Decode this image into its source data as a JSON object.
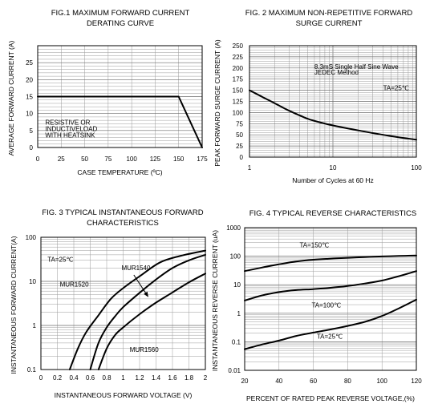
{
  "chart_data": [
    {
      "type": "line",
      "title": [
        "FIG.1 MAXIMUM FORWARD CURRENT",
        "DERATING CURVE"
      ],
      "xlabel": "CASE TEMPERATURE (ºC)",
      "ylabel": "AVERAGE FORWARD CURRENT (A)",
      "xlim": [
        0,
        175
      ],
      "ylim": [
        0,
        30
      ],
      "x_ticks": [
        "0",
        "25",
        "50",
        "75",
        "100",
        "125",
        "150",
        "175"
      ],
      "y_ticks": [
        "0",
        "5",
        "10",
        "15",
        "20",
        "25"
      ],
      "grid": true,
      "series": [
        {
          "x": [
            0,
            150,
            175
          ],
          "y": [
            15,
            15,
            0
          ]
        }
      ],
      "annotations": [
        {
          "text": "RESISTIVE OR",
          "x": 8,
          "y": 6.7
        },
        {
          "text": "INDUCTIVELOAD",
          "x": 8,
          "y": 4.8
        },
        {
          "text": "WITH HEATSINK",
          "x": 8,
          "y": 2.9
        }
      ]
    },
    {
      "type": "line",
      "title": [
        "FIG. 2 MAXIMUM NON-REPETITIVE FORWARD",
        "SURGE CURRENT"
      ],
      "xlabel": "Number of Cycles at 60 Hz",
      "ylabel": "PEAK FORWARD SURGE CURRENT (A)",
      "xscale": "log",
      "xlim": [
        1,
        100
      ],
      "ylim": [
        0,
        250
      ],
      "x_ticks": [
        "1",
        "10",
        "100"
      ],
      "y_ticks": [
        "0",
        "25",
        "50",
        "75",
        "100",
        "125",
        "150",
        "175",
        "200",
        "225",
        "250"
      ],
      "grid": true,
      "series": [
        {
          "x": [
            1,
            1.5,
            2,
            3,
            5,
            7,
            10,
            20,
            30,
            50,
            70,
            100
          ],
          "y": [
            150,
            133,
            121,
            104,
            86,
            78,
            71,
            60,
            54,
            47,
            43,
            39
          ]
        }
      ],
      "annotations": [
        {
          "text": "8.3mS Single Half Sine Wave",
          "x": 6,
          "y": 198
        },
        {
          "text": "JEDEC Method",
          "x": 6,
          "y": 185
        },
        {
          "text": "TA=25℃",
          "x": 40,
          "y": 150
        }
      ]
    },
    {
      "type": "line",
      "title": [
        "FIG. 3 TYPICAL INSTANTANEOUS FORWARD",
        "CHARACTERISTICS"
      ],
      "xlabel": "INSTANTANEOUS FORWARD VOLTAGE (V)",
      "ylabel": "INSTANTANEOUS FORWARD CURRENT(A)",
      "yscale": "log",
      "xlim": [
        0,
        2
      ],
      "ylim": [
        0.1,
        100
      ],
      "x_ticks": [
        "0",
        "0.2",
        "0.4",
        "0.6",
        "0.8",
        "1",
        "1.2",
        "1.4",
        "1.6",
        "1.8",
        "2"
      ],
      "y_ticks": [
        "0.1",
        "1",
        "10",
        "100"
      ],
      "grid": true,
      "series": [
        {
          "name": "MUR1520",
          "x": [
            0.35,
            0.45,
            0.55,
            0.7,
            0.85,
            1.0,
            1.2,
            1.45,
            1.7,
            2.0
          ],
          "y": [
            0.1,
            0.3,
            0.7,
            1.7,
            4,
            7,
            13,
            27,
            38,
            50
          ]
        },
        {
          "name": "MUR1540",
          "x": [
            0.6,
            0.7,
            0.8,
            0.9,
            1.0,
            1.2,
            1.4,
            1.6,
            1.8,
            2.0
          ],
          "y": [
            0.1,
            0.4,
            0.9,
            1.6,
            2.6,
            5.5,
            11,
            20,
            30,
            40
          ]
        },
        {
          "name": "MUR1560",
          "x": [
            0.7,
            0.8,
            0.9,
            1.0,
            1.2,
            1.4,
            1.6,
            1.8,
            2.0
          ],
          "y": [
            0.1,
            0.3,
            0.6,
            0.9,
            1.8,
            3.3,
            5.6,
            9.5,
            15
          ]
        }
      ],
      "annotations": [
        {
          "text": "TA=25℃",
          "x": 0.08,
          "y": 28
        },
        {
          "text": "MUR1540",
          "x": 0.98,
          "y": 18
        },
        {
          "text": "MUR1520",
          "x": 0.23,
          "y": 7.6
        },
        {
          "text": "MUR1560",
          "x": 1.08,
          "y": 0.25
        }
      ]
    },
    {
      "type": "line",
      "title": [
        "FIG. 4 TYPICAL REVERSE CHARACTERISTICS"
      ],
      "xlabel": "PERCENT OF RATED PEAK REVERSE VOLTAGE,(%)",
      "ylabel": "INSTANTANEOUS REVERSE CURRENT (uA)",
      "yscale": "log",
      "xlim": [
        20,
        120
      ],
      "ylim": [
        0.01,
        1000
      ],
      "x_ticks": [
        "20",
        "40",
        "60",
        "80",
        "100",
        "120"
      ],
      "y_ticks": [
        "0.01",
        "0.1",
        "1",
        "10",
        "100",
        "1000"
      ],
      "grid": true,
      "series": [
        {
          "name": "TA=150℃",
          "x": [
            20,
            30,
            40,
            50,
            60,
            70,
            80,
            90,
            100,
            110,
            120
          ],
          "y": [
            30,
            40,
            52,
            65,
            75,
            82,
            88,
            93,
            98,
            102,
            105
          ]
        },
        {
          "name": "TA=100℃",
          "x": [
            20,
            30,
            40,
            50,
            60,
            70,
            80,
            90,
            100,
            110,
            120
          ],
          "y": [
            2.8,
            4.2,
            5.5,
            6.5,
            7,
            7.8,
            9,
            11,
            14,
            20,
            30
          ]
        },
        {
          "name": "TA=25℃",
          "x": [
            20,
            30,
            40,
            50,
            60,
            70,
            80,
            90,
            100,
            110,
            120
          ],
          "y": [
            0.055,
            0.08,
            0.11,
            0.16,
            0.21,
            0.27,
            0.36,
            0.5,
            0.8,
            1.5,
            3
          ]
        }
      ],
      "annotations": [
        {
          "text": "TA=150℃",
          "x": 52,
          "y": 205
        },
        {
          "text": "TA=100℃",
          "x": 59,
          "y": 1.6
        },
        {
          "text": "TA=25℃",
          "x": 62,
          "y": 0.13
        }
      ]
    }
  ]
}
